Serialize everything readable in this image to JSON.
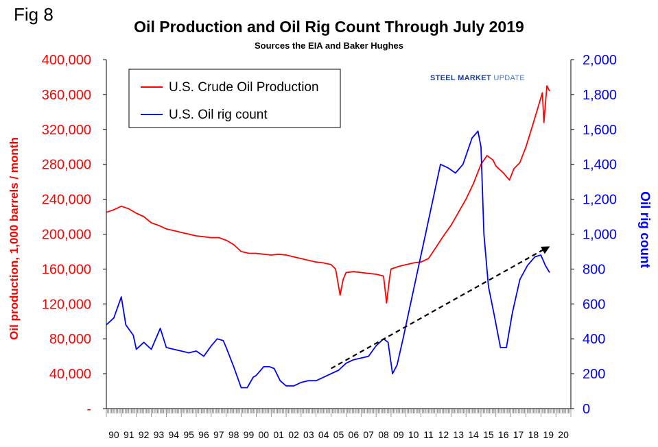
{
  "fig_label": "Fig 8",
  "brand": {
    "bold": "STEEL MARKET",
    "light": "UPDATE"
  },
  "colors": {
    "production": "#ff0000",
    "rigs": "#0000ff",
    "left_axis": "#ff0000",
    "right_axis": "#0000ff",
    "trend": "#000000"
  },
  "chart_data": {
    "type": "line",
    "title": "Oil Production and Oil Rig Count Through July 2019",
    "subtitle": "Sources the EIA and Baker Hughes",
    "ylabel_left": "Oil production, 1,000 barrels / month",
    "ylabel_right": "Oil rig count",
    "left_ylim": [
      0,
      400000
    ],
    "right_ylim": [
      0,
      2000
    ],
    "left_ticks": [
      "-",
      "40,000",
      "80,000",
      "120,000",
      "160,000",
      "200,000",
      "240,000",
      "280,000",
      "320,000",
      "360,000",
      "400,000"
    ],
    "right_ticks": [
      "0",
      "200",
      "400",
      "600",
      "800",
      "1,000",
      "1,200",
      "1,400",
      "1,600",
      "1,800",
      "2,000"
    ],
    "x_tick_labels": [
      "90",
      "91",
      "92",
      "93",
      "94",
      "95",
      "96",
      "97",
      "98",
      "99",
      "00",
      "01",
      "02",
      "03",
      "04",
      "05",
      "06",
      "07",
      "08",
      "09",
      "10",
      "11",
      "12",
      "13",
      "14",
      "15",
      "16",
      "17",
      "18",
      "19",
      "20"
    ],
    "x_range": [
      1990.0,
      2021.0
    ],
    "grid": false,
    "legend_position": "top-left",
    "series": [
      {
        "name": "U.S. Crude Oil Production",
        "axis": "left",
        "points": [
          [
            1990.0,
            225000
          ],
          [
            1990.5,
            228000
          ],
          [
            1991.0,
            232000
          ],
          [
            1991.5,
            229000
          ],
          [
            1992.0,
            224000
          ],
          [
            1992.5,
            220000
          ],
          [
            1993.0,
            213000
          ],
          [
            1993.5,
            210000
          ],
          [
            1994.0,
            206000
          ],
          [
            1994.5,
            204000
          ],
          [
            1995.0,
            202000
          ],
          [
            1995.5,
            200000
          ],
          [
            1996.0,
            198000
          ],
          [
            1996.5,
            197000
          ],
          [
            1997.0,
            196000
          ],
          [
            1997.5,
            196000
          ],
          [
            1998.0,
            193000
          ],
          [
            1998.5,
            188000
          ],
          [
            1999.0,
            180000
          ],
          [
            1999.5,
            178000
          ],
          [
            2000.0,
            178000
          ],
          [
            2000.5,
            177000
          ],
          [
            2001.0,
            176000
          ],
          [
            2001.5,
            177000
          ],
          [
            2002.0,
            176000
          ],
          [
            2002.5,
            174000
          ],
          [
            2003.0,
            172000
          ],
          [
            2003.5,
            170000
          ],
          [
            2004.0,
            168000
          ],
          [
            2004.5,
            167000
          ],
          [
            2005.0,
            165000
          ],
          [
            2005.3,
            160000
          ],
          [
            2005.6,
            130000
          ],
          [
            2005.8,
            148000
          ],
          [
            2006.0,
            156000
          ],
          [
            2006.5,
            157000
          ],
          [
            2007.0,
            156000
          ],
          [
            2007.5,
            155000
          ],
          [
            2008.0,
            154000
          ],
          [
            2008.5,
            152000
          ],
          [
            2008.7,
            121000
          ],
          [
            2008.9,
            150000
          ],
          [
            2009.0,
            160000
          ],
          [
            2009.5,
            163000
          ],
          [
            2010.0,
            165000
          ],
          [
            2010.5,
            167000
          ],
          [
            2011.0,
            168000
          ],
          [
            2011.5,
            172000
          ],
          [
            2012.0,
            185000
          ],
          [
            2012.5,
            198000
          ],
          [
            2013.0,
            210000
          ],
          [
            2013.5,
            225000
          ],
          [
            2014.0,
            240000
          ],
          [
            2014.5,
            258000
          ],
          [
            2015.0,
            280000
          ],
          [
            2015.4,
            290000
          ],
          [
            2015.8,
            285000
          ],
          [
            2016.0,
            278000
          ],
          [
            2016.5,
            270000
          ],
          [
            2016.9,
            262000
          ],
          [
            2017.2,
            275000
          ],
          [
            2017.6,
            282000
          ],
          [
            2018.0,
            300000
          ],
          [
            2018.4,
            322000
          ],
          [
            2018.8,
            345000
          ],
          [
            2019.1,
            362000
          ],
          [
            2019.2,
            328000
          ],
          [
            2019.4,
            370000
          ],
          [
            2019.58,
            364000
          ]
        ]
      },
      {
        "name": "U.S. Oil rig count",
        "axis": "right",
        "points": [
          [
            1990.0,
            480
          ],
          [
            1990.5,
            520
          ],
          [
            1991.0,
            640
          ],
          [
            1991.3,
            480
          ],
          [
            1991.8,
            420
          ],
          [
            1992.0,
            340
          ],
          [
            1992.5,
            380
          ],
          [
            1993.0,
            340
          ],
          [
            1993.6,
            460
          ],
          [
            1994.0,
            350
          ],
          [
            1994.5,
            340
          ],
          [
            1995.0,
            330
          ],
          [
            1995.5,
            320
          ],
          [
            1996.0,
            330
          ],
          [
            1996.5,
            300
          ],
          [
            1997.0,
            360
          ],
          [
            1997.4,
            400
          ],
          [
            1997.8,
            390
          ],
          [
            1998.0,
            350
          ],
          [
            1998.5,
            240
          ],
          [
            1999.0,
            120
          ],
          [
            1999.4,
            120
          ],
          [
            1999.8,
            180
          ],
          [
            2000.0,
            190
          ],
          [
            2000.5,
            240
          ],
          [
            2000.9,
            240
          ],
          [
            2001.2,
            230
          ],
          [
            2001.6,
            160
          ],
          [
            2002.0,
            130
          ],
          [
            2002.5,
            130
          ],
          [
            2003.0,
            150
          ],
          [
            2003.5,
            160
          ],
          [
            2004.0,
            160
          ],
          [
            2004.5,
            180
          ],
          [
            2005.0,
            200
          ],
          [
            2005.5,
            220
          ],
          [
            2006.0,
            260
          ],
          [
            2006.5,
            280
          ],
          [
            2007.0,
            290
          ],
          [
            2007.5,
            300
          ],
          [
            2008.0,
            360
          ],
          [
            2008.5,
            400
          ],
          [
            2008.8,
            380
          ],
          [
            2009.1,
            200
          ],
          [
            2009.4,
            250
          ],
          [
            2009.8,
            400
          ],
          [
            2010.3,
            600
          ],
          [
            2010.8,
            800
          ],
          [
            2011.3,
            1000
          ],
          [
            2011.8,
            1200
          ],
          [
            2012.3,
            1400
          ],
          [
            2012.8,
            1380
          ],
          [
            2013.3,
            1350
          ],
          [
            2013.8,
            1400
          ],
          [
            2014.4,
            1550
          ],
          [
            2014.8,
            1590
          ],
          [
            2015.0,
            1500
          ],
          [
            2015.2,
            1000
          ],
          [
            2015.5,
            700
          ],
          [
            2015.9,
            530
          ],
          [
            2016.3,
            350
          ],
          [
            2016.7,
            350
          ],
          [
            2017.1,
            550
          ],
          [
            2017.6,
            740
          ],
          [
            2018.1,
            820
          ],
          [
            2018.6,
            870
          ],
          [
            2019.0,
            880
          ],
          [
            2019.3,
            820
          ],
          [
            2019.58,
            780
          ]
        ]
      }
    ],
    "trend": {
      "axis": "right",
      "from": [
        2005.0,
        230
      ],
      "to": [
        2019.6,
        930
      ]
    }
  }
}
